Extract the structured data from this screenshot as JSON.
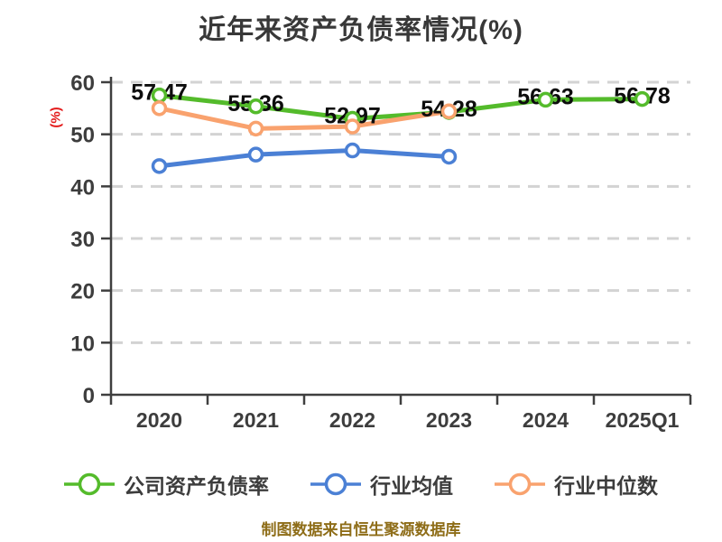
{
  "title": "近年来资产负债率情况(%)",
  "y_axis_unit": "(%)",
  "footer": "制图数据来自恒生聚源数据库",
  "colors": {
    "title": "#383838",
    "axis": "#3f3f3f",
    "grid": "#d3d3d3",
    "data_label": "#0d0d0d",
    "y_axis_unit": "#e31a1a",
    "footer": "#8e6d18",
    "company": "#54bb2b",
    "industry_avg": "#4b80d5",
    "industry_median": "#f9a26e"
  },
  "legend": {
    "items": [
      {
        "label": "公司资产负债率",
        "color": "#54bb2b"
      },
      {
        "label": "行业均值",
        "color": "#4b80d5"
      },
      {
        "label": "行业中位数",
        "color": "#f9a26e"
      }
    ]
  },
  "chart_data": {
    "type": "line",
    "title": "近年来资产负债率情况(%)",
    "categories": [
      "2020",
      "2021",
      "2022",
      "2023",
      "2024",
      "2025Q1"
    ],
    "series": [
      {
        "name": "公司资产负债率",
        "color": "#54bb2b",
        "values": [
          57.47,
          55.36,
          52.97,
          54.28,
          56.63,
          56.78
        ],
        "show_labels": true
      },
      {
        "name": "行业均值",
        "color": "#4b80d5",
        "values": [
          43.9,
          46.1,
          46.9,
          45.7
        ],
        "show_labels": false
      },
      {
        "name": "行业中位数",
        "color": "#f9a26e",
        "values": [
          55.0,
          51.1,
          51.5,
          54.4
        ],
        "show_labels": false
      }
    ],
    "xlabel": "",
    "ylabel": "(%)",
    "ylim": [
      0,
      60
    ],
    "yticks": [
      0,
      10,
      20,
      30,
      40,
      50,
      60
    ],
    "grid": "horizontal-dashed",
    "legend_position": "bottom",
    "marker": "open-circle"
  }
}
